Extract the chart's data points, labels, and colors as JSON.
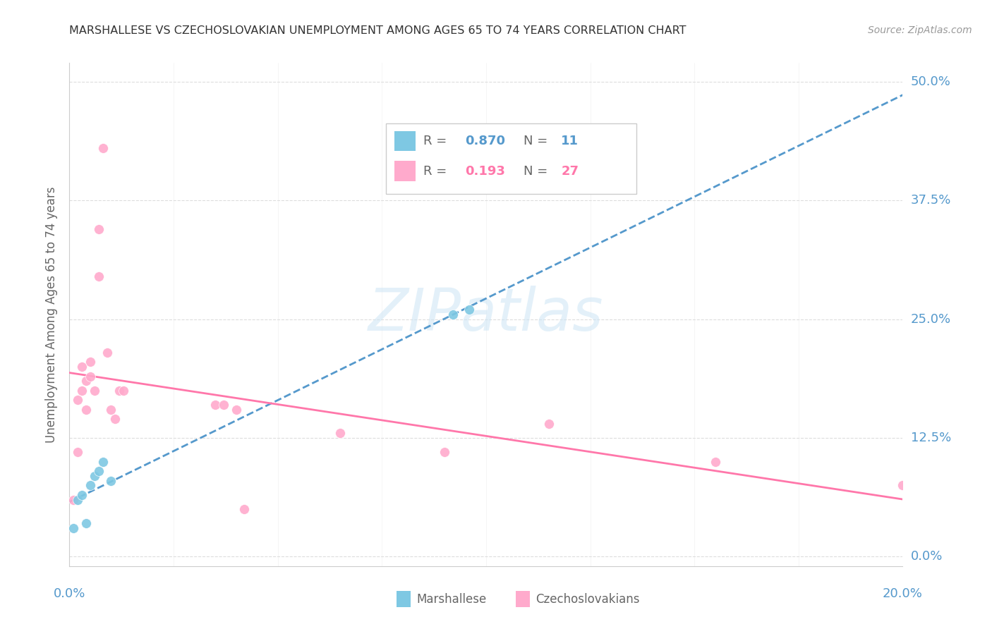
{
  "title": "MARSHALLESE VS CZECHOSLOVAKIAN UNEMPLOYMENT AMONG AGES 65 TO 74 YEARS CORRELATION CHART",
  "source": "Source: ZipAtlas.com",
  "ylabel": "Unemployment Among Ages 65 to 74 years",
  "xlim": [
    0.0,
    0.2
  ],
  "ylim": [
    -0.01,
    0.52
  ],
  "marshallese_x": [
    0.001,
    0.002,
    0.003,
    0.004,
    0.005,
    0.006,
    0.007,
    0.008,
    0.01,
    0.092,
    0.096
  ],
  "marshallese_y": [
    0.03,
    0.06,
    0.065,
    0.035,
    0.075,
    0.085,
    0.09,
    0.1,
    0.08,
    0.255,
    0.26
  ],
  "czechoslovakian_x": [
    0.001,
    0.002,
    0.002,
    0.003,
    0.003,
    0.004,
    0.004,
    0.005,
    0.005,
    0.006,
    0.007,
    0.007,
    0.008,
    0.009,
    0.01,
    0.011,
    0.012,
    0.013,
    0.035,
    0.037,
    0.04,
    0.042,
    0.065,
    0.09,
    0.115,
    0.155,
    0.2
  ],
  "czechoslovakian_y": [
    0.06,
    0.11,
    0.165,
    0.175,
    0.2,
    0.185,
    0.155,
    0.19,
    0.205,
    0.175,
    0.295,
    0.345,
    0.43,
    0.215,
    0.155,
    0.145,
    0.175,
    0.175,
    0.16,
    0.16,
    0.155,
    0.05,
    0.13,
    0.11,
    0.14,
    0.1,
    0.075
  ],
  "marshallese_color": "#7ec8e3",
  "czechoslovakian_color": "#ffaacc",
  "marshallese_line_color": "#5599cc",
  "czechoslovakian_line_color": "#ff77aa",
  "background_color": "#ffffff",
  "grid_color": "#dddddd",
  "title_color": "#333333",
  "source_color": "#999999",
  "blue_color": "#5599cc",
  "pink_color": "#ff77aa",
  "text_gray": "#666666",
  "ytick_vals": [
    0.0,
    0.125,
    0.25,
    0.375,
    0.5
  ],
  "ytick_labels": [
    "0.0%",
    "12.5%",
    "25.0%",
    "37.5%",
    "50.0%"
  ],
  "xtick_vals": [
    0.0,
    0.025,
    0.05,
    0.075,
    0.1,
    0.125,
    0.15,
    0.175,
    0.2
  ],
  "R_marsh": 0.87,
  "N_marsh": 11,
  "R_czech": 0.193,
  "N_czech": 27,
  "watermark": "ZIPatlas"
}
